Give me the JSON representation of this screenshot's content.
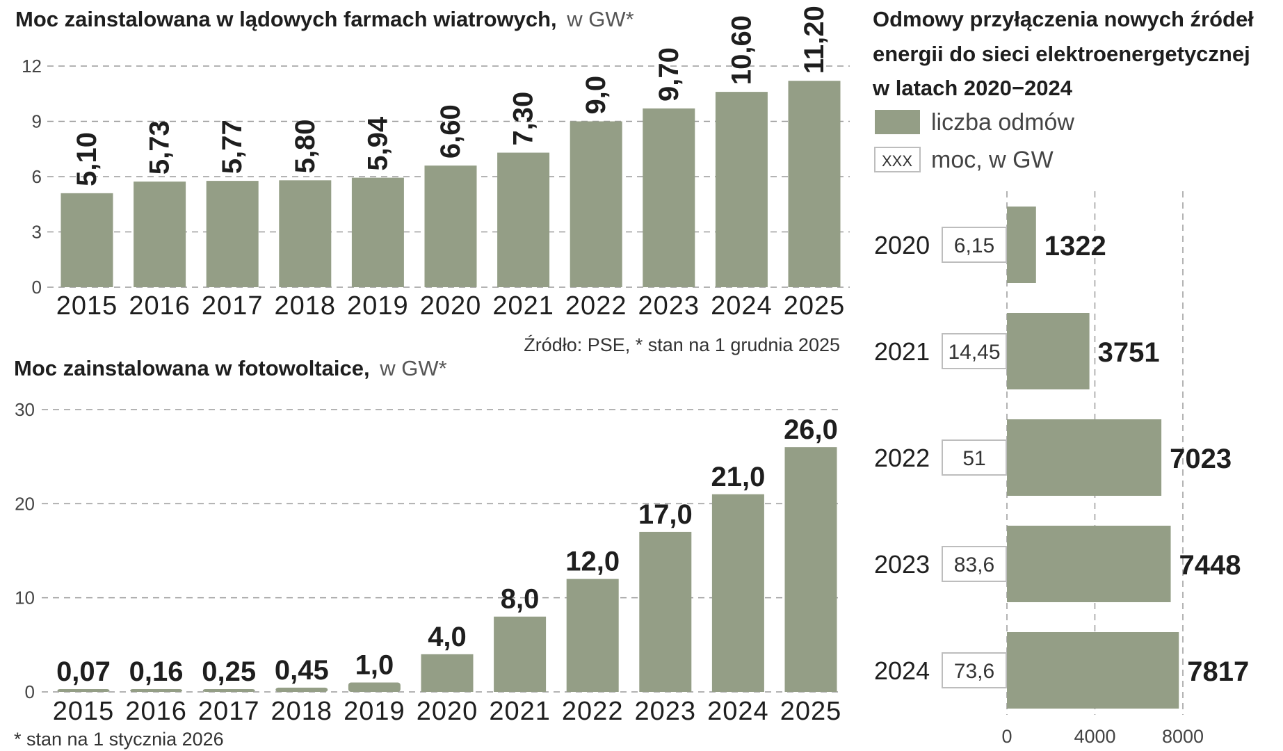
{
  "chart_data": [
    {
      "type": "bar",
      "title": "Moc zainstalowana w lądowych farmach wiatrowych,",
      "unit": "w GW*",
      "categories": [
        "2015",
        "2016",
        "2017",
        "2018",
        "2019",
        "2020",
        "2021",
        "2022",
        "2023",
        "2024",
        "2025"
      ],
      "values": [
        5.1,
        5.73,
        5.77,
        5.8,
        5.94,
        6.6,
        7.3,
        9.0,
        9.7,
        10.6,
        11.2
      ],
      "value_labels": [
        "5,10",
        "5,73",
        "5,77",
        "5,80",
        "5,94",
        "6,60",
        "7,30",
        "9,0",
        "9,70",
        "10,60",
        "11,20"
      ],
      "yticks": [
        "0",
        "3",
        "6",
        "9",
        "12"
      ],
      "ylim": [
        0,
        12
      ],
      "grid": true,
      "note": "Źródło: PSE, * stan na 1 grudnia 2025"
    },
    {
      "type": "bar",
      "title": "Moc zainstalowana w fotowoltaice,",
      "unit": "w GW*",
      "categories": [
        "2015",
        "2016",
        "2017",
        "2018",
        "2019",
        "2020",
        "2021",
        "2022",
        "2023",
        "2024",
        "2025"
      ],
      "values": [
        0.07,
        0.16,
        0.25,
        0.45,
        1.0,
        4.0,
        8.0,
        12.0,
        17.0,
        21.0,
        26.0
      ],
      "value_labels": [
        "0,07",
        "0,16",
        "0,25",
        "0,45",
        "1,0",
        "4,0",
        "8,0",
        "12,0",
        "17,0",
        "21,0",
        "26,0"
      ],
      "yticks": [
        "0",
        "10",
        "20",
        "30"
      ],
      "ylim": [
        0,
        30
      ],
      "grid": true,
      "note": "* stan na 1 stycznia 2026"
    },
    {
      "type": "bar",
      "orientation": "horizontal",
      "title_lines": [
        "Odmowy przyłączenia nowych źródeł",
        "energii do sieci elektroenergetycznej",
        "w latach 2020−2024"
      ],
      "legend": [
        {
          "label": "liczba odmów",
          "marker": "swatch"
        },
        {
          "label": "moc, w GW",
          "marker": "box",
          "marker_text": "XXX"
        }
      ],
      "categories": [
        "2020",
        "2021",
        "2022",
        "2023",
        "2024"
      ],
      "values": [
        1322,
        3751,
        7023,
        7448,
        7817
      ],
      "value_labels": [
        "1322",
        "3751",
        "7023",
        "7448",
        "7817"
      ],
      "power_gw": [
        "6,15",
        "14,45",
        "51",
        "83,6",
        "73,6"
      ],
      "xticks": [
        "0",
        "4000",
        "8000"
      ],
      "xlim": [
        0,
        8000
      ],
      "grid": true
    }
  ],
  "colors": {
    "bar": "#949e86",
    "text": "#1e1e1e",
    "grid": "#9a9a9a"
  }
}
